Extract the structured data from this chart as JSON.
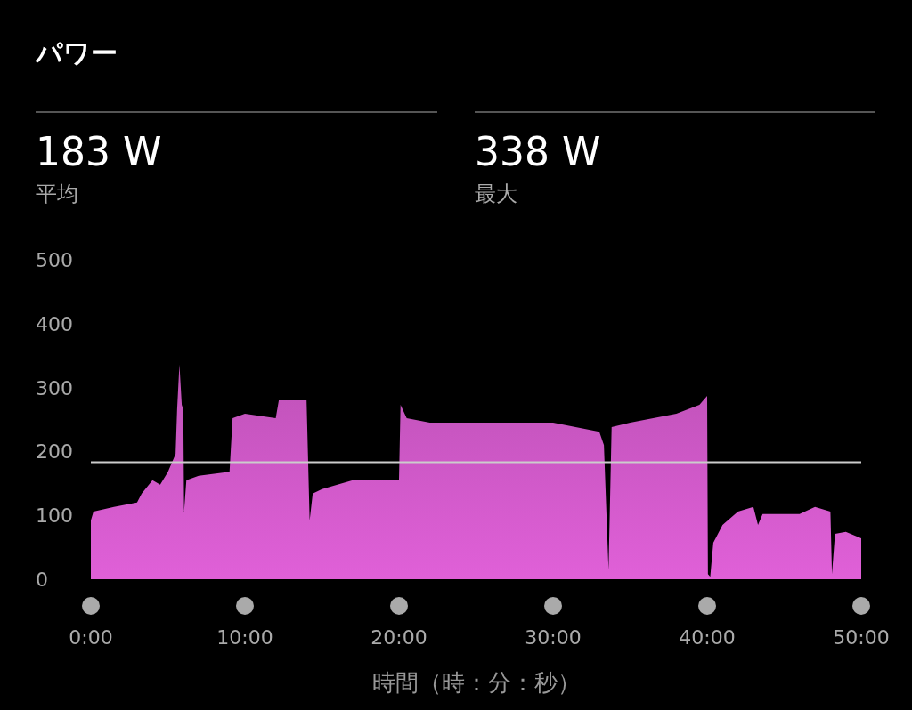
{
  "chart_data": {
    "type": "area",
    "title": "パワー",
    "xlabel": "時間（時：分：秒）",
    "annotations": [
      "183 W",
      "平均",
      "338 W",
      "最大"
    ],
    "xlim": [
      0,
      50
    ],
    "ylim": [
      0,
      500
    ],
    "xticks": [
      {
        "value": 0,
        "label": "0:00"
      },
      {
        "value": 10,
        "label": "10:00"
      },
      {
        "value": 20,
        "label": "20:00"
      },
      {
        "value": 30,
        "label": "30:00"
      },
      {
        "value": 40,
        "label": "40:00"
      },
      {
        "value": 50,
        "label": "50:00"
      }
    ],
    "yticks": [
      0,
      100,
      200,
      300,
      400,
      500
    ],
    "grid": false,
    "ref_lines": [
      {
        "axis": "y",
        "value": 183,
        "color": "#cccccc"
      }
    ],
    "series": [
      {
        "color": "#e060d8",
        "x": [
          0,
          0.17,
          1.5,
          3,
          3.3,
          4,
          4.5,
          5,
          5.5,
          5.6,
          5.75,
          5.9,
          6,
          6.05,
          6.2,
          7,
          9,
          9.2,
          10,
          12,
          12.2,
          14,
          14.2,
          14.4,
          15,
          17,
          20,
          20.1,
          20.5,
          22,
          30,
          33,
          33.3,
          33.6,
          33.8,
          35,
          38,
          39.5,
          40,
          40.05,
          40.2,
          40.4,
          41,
          42,
          43,
          43.3,
          43.6,
          46,
          47,
          48,
          48.1,
          48.3,
          49,
          50
        ],
        "values": [
          92,
          106,
          113,
          120,
          134,
          155,
          148,
          168,
          196,
          266,
          336,
          273,
          266,
          106,
          155,
          162,
          168,
          252,
          259,
          252,
          280,
          280,
          92,
          134,
          141,
          155,
          155,
          273,
          252,
          245,
          245,
          231,
          210,
          15,
          238,
          245,
          259,
          273,
          287,
          8,
          4,
          57,
          85,
          106,
          113,
          85,
          102,
          102,
          113,
          106,
          8,
          71,
          74,
          64
        ]
      }
    ]
  }
}
